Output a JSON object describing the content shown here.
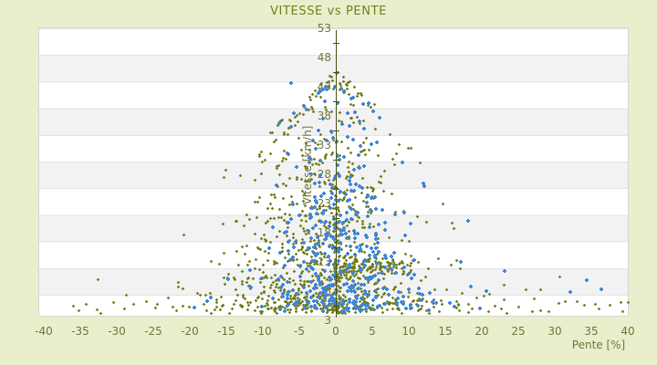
{
  "title": "VITESSE vs PENTE",
  "colors": {
    "page_background": "#e9efcc",
    "plot_background": "#ffffff",
    "alt_band": "#f2f2f2",
    "band_line": "#e3e3e3",
    "axis_line": "#47520f",
    "title_text": "#6b831d",
    "tick_text": "#73733c",
    "series_olive": "#6e7b16",
    "series_blue": "#4186d8"
  },
  "chart_data": {
    "type": "scatter",
    "title": "VITESSE vs PENTE",
    "xlabel": "Pente [%]",
    "ylabel": "Vitesse [km/h]",
    "xlim": [
      -40.75,
      40.15
    ],
    "ylim": [
      3,
      53
    ],
    "x_ticks": [
      -40,
      -35,
      -30,
      -25,
      -20,
      -15,
      -10,
      -5,
      0,
      5,
      10,
      15,
      20,
      25,
      30,
      35,
      40
    ],
    "y_ticks": [
      53,
      48,
      43,
      38,
      33,
      28,
      23,
      18,
      13,
      8,
      3
    ],
    "grid": "horizontal-bands",
    "legend": "none",
    "seed": 7,
    "description": "Dense speed-vs-slope point cloud peaking near pente 0, tapering toward both slope extremes; olive diamond markers and blue plus markers.",
    "series": [
      {
        "name": "vitesse-olive",
        "marker": "diamond",
        "color": "#6e7b16",
        "clusters": [
          {
            "n": 620,
            "p": {
              "mu": -1.5,
              "sd": 5.4
            },
            "v": {
              "base": 4.5,
              "spread": 21,
              "slope": 0.55,
              "floor": 2.5,
              "pow": 1.15
            }
          },
          {
            "n": 210,
            "p": {
              "mu": 1,
              "sd": 13
            },
            "v": {
              "base": 4,
              "spread": 2.3,
              "slope": 0,
              "floor": 2.3,
              "pow": 1
            }
          },
          {
            "n": 120,
            "p": {
              "mu": 0.8,
              "sd": 5.2,
              "half": 1
            },
            "v": {
              "normal": 1,
              "mu": 12.3,
              "sd": 1.0
            }
          },
          {
            "n": 100,
            "p": {
              "mu": 0,
              "sd": 0.3
            },
            "v": {
              "base": 4,
              "spread": 11,
              "slope": 0,
              "floor": 11,
              "pow": 1
            }
          },
          {
            "n": 80,
            "p": {
              "mu": -9,
              "sd": 4.5
            },
            "v": {
              "base": 6,
              "spread": 13,
              "slope": 0.4,
              "floor": 2,
              "pow": 1
            }
          }
        ],
        "outliers": [
          [
            -36,
            5.3
          ],
          [
            -35.2,
            4.6
          ],
          [
            -34.3,
            5.6
          ],
          [
            -32.6,
            9.8
          ],
          [
            -30.5,
            5.9
          ],
          [
            -29,
            4.9
          ],
          [
            -26,
            6.2
          ],
          [
            -24.5,
            5.6
          ],
          [
            -23,
            6.8
          ],
          [
            -21.6,
            8.7
          ],
          [
            -21,
            5.4
          ],
          [
            -19,
            7.5
          ],
          [
            -14.9,
            10.2
          ],
          [
            21,
            7.4
          ],
          [
            23,
            9
          ],
          [
            25,
            5.2
          ],
          [
            26,
            8.2
          ],
          [
            28,
            4.6
          ],
          [
            30.5,
            5.8
          ],
          [
            30.6,
            10.4
          ],
          [
            31.4,
            6.1
          ],
          [
            33,
            6.1
          ],
          [
            35.5,
            5.6
          ],
          [
            36,
            4.8
          ],
          [
            37.5,
            5.5
          ],
          [
            39,
            5.9
          ],
          [
            39.3,
            4.4
          ],
          [
            40,
            5.9
          ]
        ]
      },
      {
        "name": "vitesse-blue",
        "marker": "plus",
        "color": "#4186d8",
        "clusters": [
          {
            "n": 320,
            "p": {
              "mu": 0,
              "sd": 4.0
            },
            "v": {
              "base": 5,
              "spread": 20,
              "slope": 0.9,
              "floor": 2.5,
              "pow": 1.1
            }
          },
          {
            "n": 70,
            "p": {
              "mu": 1.5,
              "sd": 7.5
            },
            "v": {
              "base": 4.5,
              "spread": 3,
              "slope": 0,
              "floor": 3,
              "pow": 1
            }
          },
          {
            "n": 45,
            "p": {
              "mu": 0.5,
              "sd": 6,
              "half": 1
            },
            "v": {
              "base": 5,
              "spread": 15,
              "slope": 0.7,
              "floor": 2,
              "pow": 1
            }
          }
        ],
        "outliers": [
          [
            -17.7,
            6.3
          ],
          [
            -6.2,
            43.7
          ],
          [
            1,
            42
          ],
          [
            23,
            11.5
          ],
          [
            20.5,
            8
          ],
          [
            17,
            13
          ],
          [
            15.5,
            6
          ],
          [
            18,
            20
          ],
          [
            12,
            26
          ],
          [
            9,
            30
          ],
          [
            34.3,
            9.8
          ],
          [
            36.2,
            8.3
          ],
          [
            32,
            7.9
          ]
        ]
      }
    ]
  }
}
